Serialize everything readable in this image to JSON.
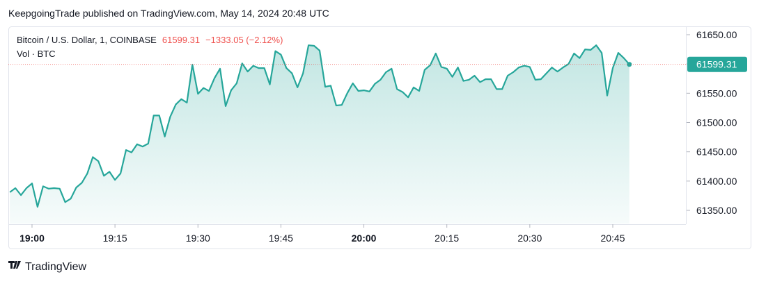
{
  "publisher": "KeepgoingTrade published on TradingView.com, May 14, 2024 20:48 UTC",
  "brand": "TradingView",
  "chart_data": {
    "type": "area",
    "symbol": "Bitcoin / U.S. Dollar, 1, COINBASE",
    "last_label": "61599.31",
    "change_label": "−1333.05 (−2.12%)",
    "volume_label": "Vol · BTC",
    "x": [
      "18:56",
      "18:57",
      "18:58",
      "18:59",
      "19:00",
      "19:01",
      "19:02",
      "19:03",
      "19:04",
      "19:05",
      "19:06",
      "19:07",
      "19:08",
      "19:09",
      "19:10",
      "19:11",
      "19:12",
      "19:13",
      "19:14",
      "19:15",
      "19:16",
      "19:17",
      "19:18",
      "19:19",
      "19:20",
      "19:21",
      "19:22",
      "19:23",
      "19:24",
      "19:25",
      "19:26",
      "19:27",
      "19:28",
      "19:29",
      "19:30",
      "19:31",
      "19:32",
      "19:33",
      "19:34",
      "19:35",
      "19:36",
      "19:37",
      "19:38",
      "19:39",
      "19:40",
      "19:41",
      "19:42",
      "19:43",
      "19:44",
      "19:45",
      "19:46",
      "19:47",
      "19:48",
      "19:49",
      "19:50",
      "19:51",
      "19:52",
      "19:53",
      "19:54",
      "19:55",
      "19:56",
      "19:57",
      "19:58",
      "19:59",
      "20:00",
      "20:01",
      "20:02",
      "20:03",
      "20:04",
      "20:05",
      "20:06",
      "20:07",
      "20:08",
      "20:09",
      "20:10",
      "20:11",
      "20:12",
      "20:13",
      "20:14",
      "20:15",
      "20:16",
      "20:17",
      "20:18",
      "20:19",
      "20:20",
      "20:21",
      "20:22",
      "20:23",
      "20:24",
      "20:25",
      "20:26",
      "20:27",
      "20:28",
      "20:29",
      "20:30",
      "20:31",
      "20:32",
      "20:33",
      "20:34",
      "20:35",
      "20:36",
      "20:37",
      "20:38",
      "20:39",
      "20:40",
      "20:41",
      "20:42",
      "20:43",
      "20:44",
      "20:45",
      "20:46",
      "20:47",
      "20:48"
    ],
    "series": [
      {
        "name": "BTCUSD",
        "color": "#26a69a",
        "values": [
          61381,
          61388,
          61376,
          61388,
          61396,
          61356,
          61391,
          61387,
          61388,
          61387,
          61364,
          61370,
          61389,
          61397,
          61413,
          61441,
          61434,
          61409,
          61416,
          61402,
          61413,
          61453,
          61449,
          61463,
          61459,
          61464,
          61512,
          61512,
          61476,
          61510,
          61531,
          61540,
          61534,
          61599,
          61549,
          61559,
          61554,
          61576,
          61592,
          61528,
          61555,
          61567,
          61601,
          61587,
          61597,
          61593,
          61593,
          61565,
          61622,
          61616,
          61593,
          61584,
          61560,
          61584,
          61632,
          61631,
          61623,
          61561,
          61563,
          61529,
          61530,
          61550,
          61567,
          61554,
          61555,
          61553,
          61566,
          61573,
          61586,
          61592,
          61557,
          61552,
          61543,
          61560,
          61554,
          61590,
          61598,
          61618,
          61595,
          61592,
          61578,
          61594,
          61571,
          61573,
          61580,
          61569,
          61574,
          61574,
          61557,
          61557,
          61580,
          61586,
          61594,
          61597,
          61595,
          61573,
          61574,
          61584,
          61594,
          61587,
          61594,
          61600,
          61618,
          61610,
          61625,
          61624,
          61632,
          61619,
          61546,
          61593,
          61619,
          61610,
          61599.31
        ]
      }
    ],
    "last_value": 61599.31,
    "ylim": [
      61327.5,
      61664.2
    ],
    "yticks": [
      {
        "value": 61350,
        "label": "61350.00"
      },
      {
        "value": 61400,
        "label": "61400.00"
      },
      {
        "value": 61450,
        "label": "61450.00"
      },
      {
        "value": 61500,
        "label": "61500.00"
      },
      {
        "value": 61550,
        "label": "61550.00"
      },
      {
        "value": 61600,
        "label": "61600.00"
      },
      {
        "value": 61650,
        "label": "61650.00"
      }
    ],
    "xticks": [
      "19:00",
      "19:15",
      "19:30",
      "19:45",
      "20:00",
      "20:15",
      "20:30",
      "20:45"
    ],
    "bold_xticks": [
      "19:00",
      "20:00"
    ],
    "down_color": "#ef5350"
  }
}
